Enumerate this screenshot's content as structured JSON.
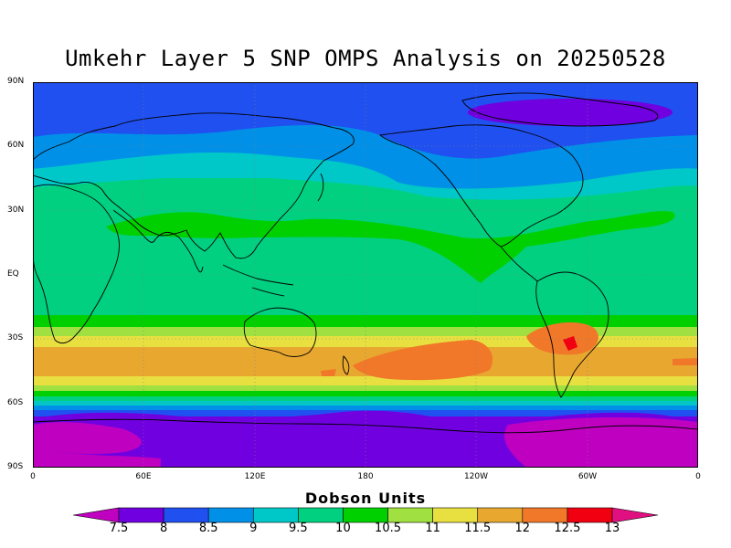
{
  "title": "Umkehr Layer 5 SNP OMPS Analysis on 20250528",
  "lat_labels": [
    "90N",
    "60N",
    "30N",
    "EQ",
    "30S",
    "60S",
    "90S"
  ],
  "lon_labels": [
    "0",
    "60E",
    "120E",
    "180",
    "120W",
    "60W",
    "0"
  ],
  "colorbar": {
    "title": "Dobson Units",
    "levels": [
      "7.5",
      "8",
      "8.5",
      "9",
      "9.5",
      "10",
      "10.5",
      "11",
      "11.5",
      "12",
      "12.5",
      "13"
    ],
    "colors": [
      "#c000c0",
      "#7000e0",
      "#2050f0",
      "#0090e8",
      "#00c8c8",
      "#00d080",
      "#00d000",
      "#a0e040",
      "#e8e040",
      "#e8a830",
      "#f07828",
      "#f00010",
      "#e01080"
    ]
  }
}
